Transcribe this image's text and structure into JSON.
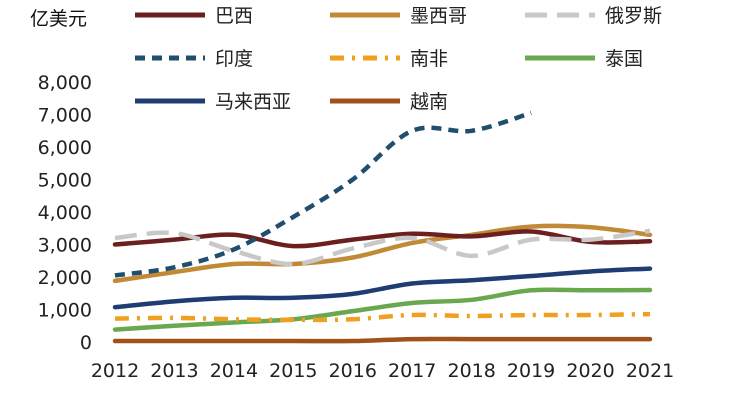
{
  "chart_data": {
    "type": "line",
    "unit_label": "亿美元",
    "categories": [
      "2012",
      "2013",
      "2014",
      "2015",
      "2016",
      "2017",
      "2018",
      "2019",
      "2020",
      "2021"
    ],
    "y_ticks": [
      "0",
      "1,000",
      "2,000",
      "3,000",
      "4,000",
      "5,000",
      "6,000",
      "7,000",
      "8,000"
    ],
    "ylim": [
      0,
      8000
    ],
    "grid": false,
    "legend_position": "top",
    "series": [
      {
        "name": "巴西",
        "color": "#6B1F1F",
        "dash": "solid",
        "values": [
          3000,
          3150,
          3300,
          2950,
          3150,
          3330,
          3250,
          3400,
          3080,
          3100
        ]
      },
      {
        "name": "墨西哥",
        "color": "#C28A36",
        "dash": "solid",
        "values": [
          1880,
          2150,
          2400,
          2400,
          2600,
          3050,
          3300,
          3550,
          3530,
          3300
        ]
      },
      {
        "name": "俄罗斯",
        "color": "#C8C8C8",
        "dash": "longdash",
        "values": [
          3200,
          3350,
          2800,
          2400,
          2880,
          3200,
          2650,
          3150,
          3150,
          3420
        ]
      },
      {
        "name": "印度",
        "color": "#1F4E6E",
        "dash": "shortdash",
        "values": [
          2050,
          2300,
          2850,
          3850,
          5000,
          6500,
          6500,
          7050,
          null,
          null
        ]
      },
      {
        "name": "南非",
        "color": "#F0A020",
        "dash": "dashdot",
        "values": [
          720,
          740,
          700,
          680,
          700,
          830,
          800,
          830,
          830,
          860
        ]
      },
      {
        "name": "泰国",
        "color": "#6AA84F",
        "dash": "solid",
        "values": [
          380,
          500,
          600,
          700,
          950,
          1200,
          1300,
          1590,
          1590,
          1600
        ]
      },
      {
        "name": "马来西亚",
        "color": "#1F3C73",
        "dash": "solid",
        "values": [
          1070,
          1250,
          1360,
          1360,
          1480,
          1800,
          1900,
          2030,
          2170,
          2260
        ]
      },
      {
        "name": "越南",
        "color": "#A0521B",
        "dash": "solid",
        "values": [
          30,
          30,
          30,
          30,
          30,
          90,
          90,
          90,
          90,
          90
        ]
      }
    ]
  }
}
